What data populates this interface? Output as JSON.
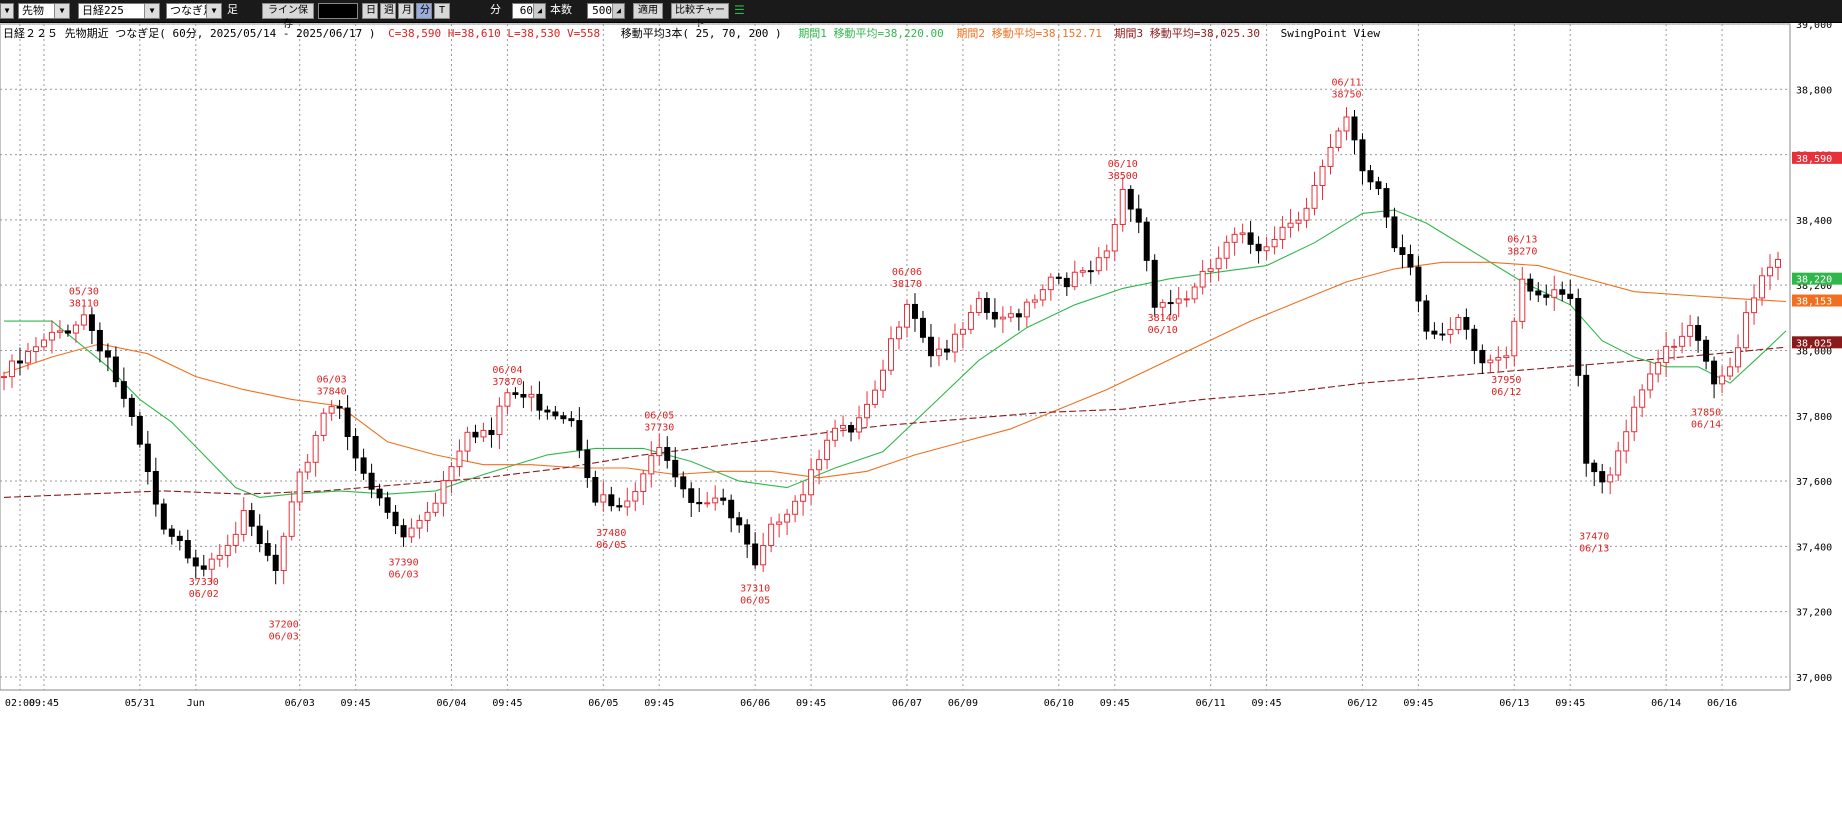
{
  "toolbar": {
    "product_select": "先物",
    "index_select": "日経225",
    "chain_select": "つなぎ足",
    "label_ashi": "足",
    "btn_line_save": "ライン保存",
    "btn_day": "日",
    "btn_week": "週",
    "btn_month": "月",
    "btn_minute": "分",
    "btn_tick": "T",
    "minute_value": "60",
    "label_minute": "分",
    "bars_value": "500",
    "label_bars": "本数",
    "btn_apply": "適用",
    "btn_compare": "比較チャート"
  },
  "info": {
    "title": "日経２２５ 先物期近 つなぎ足( 60分, 2025/05/14 - 2025/06/17 )",
    "ohlcv": "C=38,590 H=38,610 L=38,530 V=558",
    "ma_label": "移動平均3本( 25, 70, 200 )",
    "ma1": "期間1 移動平均=38,220.00",
    "ma2": "期間2 移動平均=38,152.71",
    "ma3": "期間3 移動平均=38,025.30",
    "view": "SwingPoint View"
  },
  "colors": {
    "up": "#e8303a",
    "down": "#000000",
    "ma1": "#2fb84a",
    "ma2": "#f07020",
    "ma3": "#8b1a1a",
    "swing": "#e02020"
  },
  "chart_data": {
    "type": "candlestick",
    "interval": "60分",
    "ylim": [
      36960,
      39000
    ],
    "yticks": [
      "39,000",
      "38,800",
      "38,600",
      "38,400",
      "38,200",
      "38,000",
      "37,800",
      "37,600",
      "37,400",
      "37,200",
      "37,000"
    ],
    "price_tags": [
      {
        "value": 38590,
        "label": "38,590",
        "color": "#e8303a"
      },
      {
        "value": 38220,
        "label": "38,220",
        "color": "#2fb84a"
      },
      {
        "value": 38153,
        "label": "38,153",
        "color": "#f07020"
      },
      {
        "value": 38025,
        "label": "38,025",
        "color": "#8b1a1a"
      }
    ],
    "xticks": [
      {
        "i": 2,
        "label": "02:00"
      },
      {
        "i": 5,
        "label": "09:45"
      },
      {
        "i": 17,
        "label": "05/31"
      },
      {
        "i": 24,
        "label": "Jun"
      },
      {
        "i": 37,
        "label": "06/03"
      },
      {
        "i": 44,
        "label": "09:45"
      },
      {
        "i": 56,
        "label": "06/04"
      },
      {
        "i": 63,
        "label": "09:45"
      },
      {
        "i": 75,
        "label": "06/05"
      },
      {
        "i": 82,
        "label": "09:45"
      },
      {
        "i": 94,
        "label": "06/06"
      },
      {
        "i": 101,
        "label": "09:45"
      },
      {
        "i": 113,
        "label": "06/07"
      },
      {
        "i": 120,
        "label": "06/09"
      },
      {
        "i": 132,
        "label": "06/10"
      },
      {
        "i": 139,
        "label": "09:45"
      },
      {
        "i": 151,
        "label": "06/11"
      },
      {
        "i": 158,
        "label": "09:45"
      },
      {
        "i": 170,
        "label": "06/12"
      },
      {
        "i": 177,
        "label": "09:45"
      },
      {
        "i": 189,
        "label": "06/13"
      },
      {
        "i": 196,
        "label": "09:45"
      },
      {
        "i": 208,
        "label": "06/14"
      },
      {
        "i": 215,
        "label": "06/16"
      }
    ],
    "candle_close_path": [
      {
        "i": 0,
        "v": 37920
      },
      {
        "i": 4,
        "v": 38000
      },
      {
        "i": 10,
        "v": 38110
      },
      {
        "i": 13,
        "v": 37980
      },
      {
        "i": 17,
        "v": 37700
      },
      {
        "i": 20,
        "v": 37430
      },
      {
        "i": 25,
        "v": 37350
      },
      {
        "i": 30,
        "v": 37480
      },
      {
        "i": 34,
        "v": 37320
      },
      {
        "i": 37,
        "v": 37600
      },
      {
        "i": 40,
        "v": 37820
      },
      {
        "i": 42,
        "v": 37840
      },
      {
        "i": 45,
        "v": 37600
      },
      {
        "i": 48,
        "v": 37500
      },
      {
        "i": 50,
        "v": 37420
      },
      {
        "i": 54,
        "v": 37550
      },
      {
        "i": 58,
        "v": 37770
      },
      {
        "i": 61,
        "v": 37740
      },
      {
        "i": 63,
        "v": 37870
      },
      {
        "i": 67,
        "v": 37840
      },
      {
        "i": 71,
        "v": 37800
      },
      {
        "i": 74,
        "v": 37560
      },
      {
        "i": 77,
        "v": 37500
      },
      {
        "i": 80,
        "v": 37600
      },
      {
        "i": 82,
        "v": 37730
      },
      {
        "i": 86,
        "v": 37550
      },
      {
        "i": 89,
        "v": 37550
      },
      {
        "i": 92,
        "v": 37450
      },
      {
        "i": 94,
        "v": 37320
      },
      {
        "i": 97,
        "v": 37500
      },
      {
        "i": 100,
        "v": 37580
      },
      {
        "i": 103,
        "v": 37750
      },
      {
        "i": 106,
        "v": 37740
      },
      {
        "i": 109,
        "v": 37850
      },
      {
        "i": 112,
        "v": 38100
      },
      {
        "i": 113,
        "v": 38170
      },
      {
        "i": 116,
        "v": 38000
      },
      {
        "i": 119,
        "v": 38020
      },
      {
        "i": 122,
        "v": 38130
      },
      {
        "i": 125,
        "v": 38080
      },
      {
        "i": 128,
        "v": 38150
      },
      {
        "i": 131,
        "v": 38230
      },
      {
        "i": 135,
        "v": 38220
      },
      {
        "i": 138,
        "v": 38280
      },
      {
        "i": 140,
        "v": 38480
      },
      {
        "i": 142,
        "v": 38400
      },
      {
        "i": 144,
        "v": 38160
      },
      {
        "i": 146,
        "v": 38150
      },
      {
        "i": 149,
        "v": 38180
      },
      {
        "i": 151,
        "v": 38250
      },
      {
        "i": 154,
        "v": 38340
      },
      {
        "i": 157,
        "v": 38320
      },
      {
        "i": 160,
        "v": 38380
      },
      {
        "i": 163,
        "v": 38450
      },
      {
        "i": 166,
        "v": 38600
      },
      {
        "i": 168,
        "v": 38700
      },
      {
        "i": 170,
        "v": 38550
      },
      {
        "i": 172,
        "v": 38500
      },
      {
        "i": 174,
        "v": 38330
      },
      {
        "i": 176,
        "v": 38280
      },
      {
        "i": 178,
        "v": 38060
      },
      {
        "i": 180,
        "v": 38020
      },
      {
        "i": 182,
        "v": 38080
      },
      {
        "i": 185,
        "v": 37960
      },
      {
        "i": 188,
        "v": 38000
      },
      {
        "i": 190,
        "v": 38230
      },
      {
        "i": 193,
        "v": 38160
      },
      {
        "i": 196,
        "v": 38150
      },
      {
        "i": 198,
        "v": 37650
      },
      {
        "i": 200,
        "v": 37580
      },
      {
        "i": 203,
        "v": 37770
      },
      {
        "i": 206,
        "v": 37950
      },
      {
        "i": 209,
        "v": 38000
      },
      {
        "i": 211,
        "v": 38070
      },
      {
        "i": 214,
        "v": 37880
      },
      {
        "i": 216,
        "v": 37950
      },
      {
        "i": 218,
        "v": 38120
      },
      {
        "i": 220,
        "v": 38240
      },
      {
        "i": 222,
        "v": 38300
      }
    ],
    "ma_series": [
      {
        "name": "期間1 移動平均",
        "period": 25,
        "color": "#2fb84a",
        "dash": false,
        "points": [
          {
            "i": 0,
            "v": 38090
          },
          {
            "i": 6,
            "v": 38090
          },
          {
            "i": 13,
            "v": 37950
          },
          {
            "i": 17,
            "v": 37850
          },
          {
            "i": 21,
            "v": 37780
          },
          {
            "i": 25,
            "v": 37680
          },
          {
            "i": 29,
            "v": 37580
          },
          {
            "i": 32,
            "v": 37550
          },
          {
            "i": 36,
            "v": 37560
          },
          {
            "i": 42,
            "v": 37570
          },
          {
            "i": 48,
            "v": 37560
          },
          {
            "i": 54,
            "v": 37570
          },
          {
            "i": 60,
            "v": 37620
          },
          {
            "i": 68,
            "v": 37680
          },
          {
            "i": 74,
            "v": 37700
          },
          {
            "i": 80,
            "v": 37700
          },
          {
            "i": 86,
            "v": 37660
          },
          {
            "i": 92,
            "v": 37600
          },
          {
            "i": 98,
            "v": 37580
          },
          {
            "i": 104,
            "v": 37640
          },
          {
            "i": 110,
            "v": 37690
          },
          {
            "i": 116,
            "v": 37830
          },
          {
            "i": 122,
            "v": 37970
          },
          {
            "i": 128,
            "v": 38070
          },
          {
            "i": 134,
            "v": 38140
          },
          {
            "i": 140,
            "v": 38190
          },
          {
            "i": 146,
            "v": 38220
          },
          {
            "i": 152,
            "v": 38240
          },
          {
            "i": 158,
            "v": 38260
          },
          {
            "i": 164,
            "v": 38330
          },
          {
            "i": 170,
            "v": 38420
          },
          {
            "i": 174,
            "v": 38430
          },
          {
            "i": 178,
            "v": 38390
          },
          {
            "i": 184,
            "v": 38300
          },
          {
            "i": 190,
            "v": 38210
          },
          {
            "i": 196,
            "v": 38140
          },
          {
            "i": 200,
            "v": 38030
          },
          {
            "i": 204,
            "v": 37980
          },
          {
            "i": 208,
            "v": 37950
          },
          {
            "i": 212,
            "v": 37950
          },
          {
            "i": 216,
            "v": 37900
          },
          {
            "i": 220,
            "v": 37990
          },
          {
            "i": 223,
            "v": 38060
          }
        ]
      },
      {
        "name": "期間2 移動平均",
        "period": 70,
        "color": "#f07020",
        "dash": false,
        "points": [
          {
            "i": 0,
            "v": 37930
          },
          {
            "i": 6,
            "v": 37980
          },
          {
            "i": 12,
            "v": 38020
          },
          {
            "i": 18,
            "v": 37990
          },
          {
            "i": 24,
            "v": 37920
          },
          {
            "i": 30,
            "v": 37880
          },
          {
            "i": 36,
            "v": 37850
          },
          {
            "i": 42,
            "v": 37830
          },
          {
            "i": 48,
            "v": 37720
          },
          {
            "i": 54,
            "v": 37680
          },
          {
            "i": 60,
            "v": 37650
          },
          {
            "i": 66,
            "v": 37650
          },
          {
            "i": 72,
            "v": 37640
          },
          {
            "i": 78,
            "v": 37640
          },
          {
            "i": 84,
            "v": 37620
          },
          {
            "i": 90,
            "v": 37630
          },
          {
            "i": 96,
            "v": 37630
          },
          {
            "i": 102,
            "v": 37610
          },
          {
            "i": 108,
            "v": 37630
          },
          {
            "i": 114,
            "v": 37680
          },
          {
            "i": 120,
            "v": 37720
          },
          {
            "i": 126,
            "v": 37760
          },
          {
            "i": 132,
            "v": 37820
          },
          {
            "i": 138,
            "v": 37880
          },
          {
            "i": 144,
            "v": 37950
          },
          {
            "i": 150,
            "v": 38020
          },
          {
            "i": 156,
            "v": 38090
          },
          {
            "i": 162,
            "v": 38150
          },
          {
            "i": 168,
            "v": 38210
          },
          {
            "i": 174,
            "v": 38250
          },
          {
            "i": 180,
            "v": 38270
          },
          {
            "i": 186,
            "v": 38270
          },
          {
            "i": 192,
            "v": 38260
          },
          {
            "i": 198,
            "v": 38220
          },
          {
            "i": 204,
            "v": 38180
          },
          {
            "i": 210,
            "v": 38170
          },
          {
            "i": 216,
            "v": 38160
          },
          {
            "i": 223,
            "v": 38150
          }
        ]
      },
      {
        "name": "期間3 移動平均",
        "period": 200,
        "color": "#8b1a1a",
        "dash": true,
        "points": [
          {
            "i": 0,
            "v": 37550
          },
          {
            "i": 10,
            "v": 37560
          },
          {
            "i": 20,
            "v": 37570
          },
          {
            "i": 30,
            "v": 37560
          },
          {
            "i": 40,
            "v": 37570
          },
          {
            "i": 50,
            "v": 37590
          },
          {
            "i": 60,
            "v": 37610
          },
          {
            "i": 70,
            "v": 37640
          },
          {
            "i": 80,
            "v": 37680
          },
          {
            "i": 90,
            "v": 37710
          },
          {
            "i": 100,
            "v": 37740
          },
          {
            "i": 110,
            "v": 37770
          },
          {
            "i": 120,
            "v": 37790
          },
          {
            "i": 130,
            "v": 37810
          },
          {
            "i": 140,
            "v": 37820
          },
          {
            "i": 150,
            "v": 37850
          },
          {
            "i": 160,
            "v": 37870
          },
          {
            "i": 170,
            "v": 37900
          },
          {
            "i": 180,
            "v": 37920
          },
          {
            "i": 190,
            "v": 37940
          },
          {
            "i": 200,
            "v": 37960
          },
          {
            "i": 210,
            "v": 37980
          },
          {
            "i": 223,
            "v": 38010
          }
        ]
      }
    ],
    "swing_points": [
      {
        "i": 10,
        "price": 38110,
        "date": "05/30",
        "pos": "high"
      },
      {
        "i": 25,
        "price": 37330,
        "date": "06/02",
        "pos": "low"
      },
      {
        "i": 35,
        "price": 37200,
        "date": "06/03",
        "pos": "low"
      },
      {
        "i": 41,
        "price": 37840,
        "date": "06/03",
        "pos": "high"
      },
      {
        "i": 50,
        "price": 37390,
        "date": "06/03",
        "pos": "low"
      },
      {
        "i": 63,
        "price": 37870,
        "date": "06/04",
        "pos": "high"
      },
      {
        "i": 76,
        "price": 37480,
        "date": "06/05",
        "pos": "low"
      },
      {
        "i": 82,
        "price": 37730,
        "date": "06/05",
        "pos": "high"
      },
      {
        "i": 94,
        "price": 37310,
        "date": "06/05",
        "pos": "low"
      },
      {
        "i": 113,
        "price": 38170,
        "date": "06/06",
        "pos": "high"
      },
      {
        "i": 140,
        "price": 38500,
        "date": "06/10",
        "pos": "high"
      },
      {
        "i": 145,
        "price": 38140,
        "date": "06/10",
        "pos": "low"
      },
      {
        "i": 168,
        "price": 38750,
        "date": "06/11",
        "pos": "high"
      },
      {
        "i": 190,
        "price": 38270,
        "date": "06/13",
        "pos": "high"
      },
      {
        "i": 188,
        "price": 37950,
        "date": "06/12",
        "pos": "low"
      },
      {
        "i": 199,
        "price": 37470,
        "date": "06/13",
        "pos": "low"
      },
      {
        "i": 213,
        "price": 37850,
        "date": "06/14",
        "pos": "low"
      }
    ]
  }
}
